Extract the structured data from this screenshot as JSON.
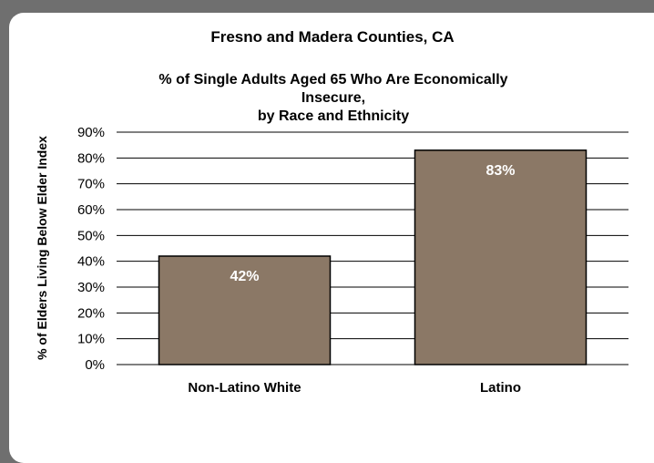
{
  "chart_data": {
    "type": "bar",
    "title": "Fresno and Madera Counties, CA",
    "subtitle_lines": [
      "% of Single Adults Aged 65 Who Are Economically",
      "Insecure,",
      "by Race and Ethnicity"
    ],
    "ylabel": "% of  Elders Living Below  Elder Index",
    "xlabel": "",
    "categories": [
      "Non-Latino White",
      "Latino"
    ],
    "values": [
      42,
      83
    ],
    "data_labels": [
      "42%",
      "83%"
    ],
    "ylim": [
      0,
      90
    ],
    "yticks": [
      0,
      10,
      20,
      30,
      40,
      50,
      60,
      70,
      80,
      90
    ],
    "ytick_labels": [
      "0%",
      "10%",
      "20%",
      "30%",
      "40%",
      "50%",
      "60%",
      "70%",
      "80%",
      "90%"
    ],
    "grid": true,
    "legend": "none",
    "bar_color": "#8b7866",
    "frame_color": "#6f6f6f"
  }
}
